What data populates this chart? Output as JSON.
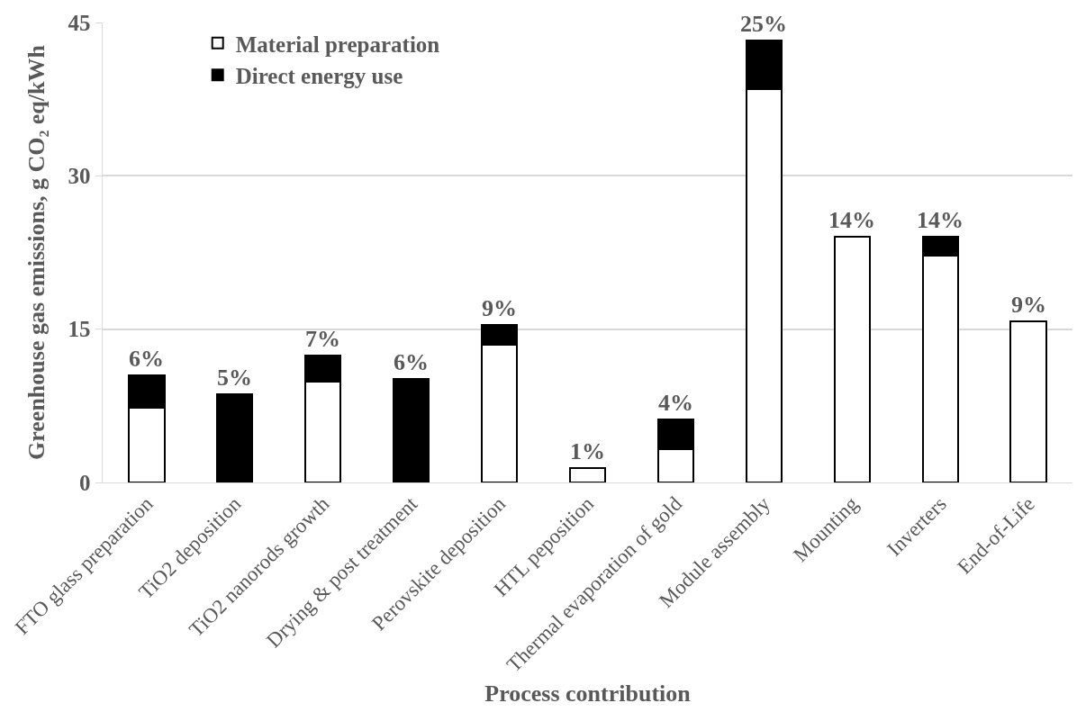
{
  "chart_data": {
    "type": "bar",
    "stacked": true,
    "xlabel": "Process contribution",
    "ylabel": "Greenhouse gas emissions, g CO₂ eq/kWh",
    "categories": [
      "FTO glass preparation",
      "TiO2 deposition",
      "TiO2 nanorods growth",
      "Drying & post treatment",
      "Perovskite deposition",
      "HTL peposition",
      "Thermal evaporation of gold",
      "Module assembly",
      "Mounting",
      "Inverters",
      "End-of-Life"
    ],
    "series": [
      {
        "name": "Material preparation",
        "color": "#ffffff",
        "values": [
          7.3,
          0,
          9.9,
          0,
          13.5,
          1.4,
          3.3,
          38.5,
          24.0,
          22.2,
          15.8
        ]
      },
      {
        "name": "Direct energy use",
        "color": "#000000",
        "values": [
          3.2,
          8.6,
          2.5,
          10.1,
          1.9,
          0,
          2.9,
          4.7,
          0,
          1.8,
          0
        ]
      }
    ],
    "annotations": [
      {
        "text": "6%",
        "x": "FTO glass preparation",
        "y": 10.5
      },
      {
        "text": "5%",
        "x": "TiO2 deposition",
        "y": 8.6
      },
      {
        "text": "7%",
        "x": "TiO2 nanorods growth",
        "y": 12.4
      },
      {
        "text": "6%",
        "x": "Drying & post treatment",
        "y": 10.1
      },
      {
        "text": "9%",
        "x": "Perovskite deposition",
        "y": 15.4
      },
      {
        "text": "1%",
        "x": "HTL peposition",
        "y": 1.4
      },
      {
        "text": "4%",
        "x": "Thermal evaporation of gold",
        "y": 6.2
      },
      {
        "text": "25%",
        "x": "Module assembly",
        "y": 43.2
      },
      {
        "text": "14%",
        "x": "Mounting",
        "y": 24.0
      },
      {
        "text": "14%",
        "x": "Inverters",
        "y": 24.0
      },
      {
        "text": "9%",
        "x": "End-of-Life",
        "y": 15.8
      }
    ],
    "ylim": [
      0,
      45
    ],
    "yticks": [
      0,
      15,
      30,
      45
    ],
    "grid": "y",
    "legend": "top left"
  }
}
